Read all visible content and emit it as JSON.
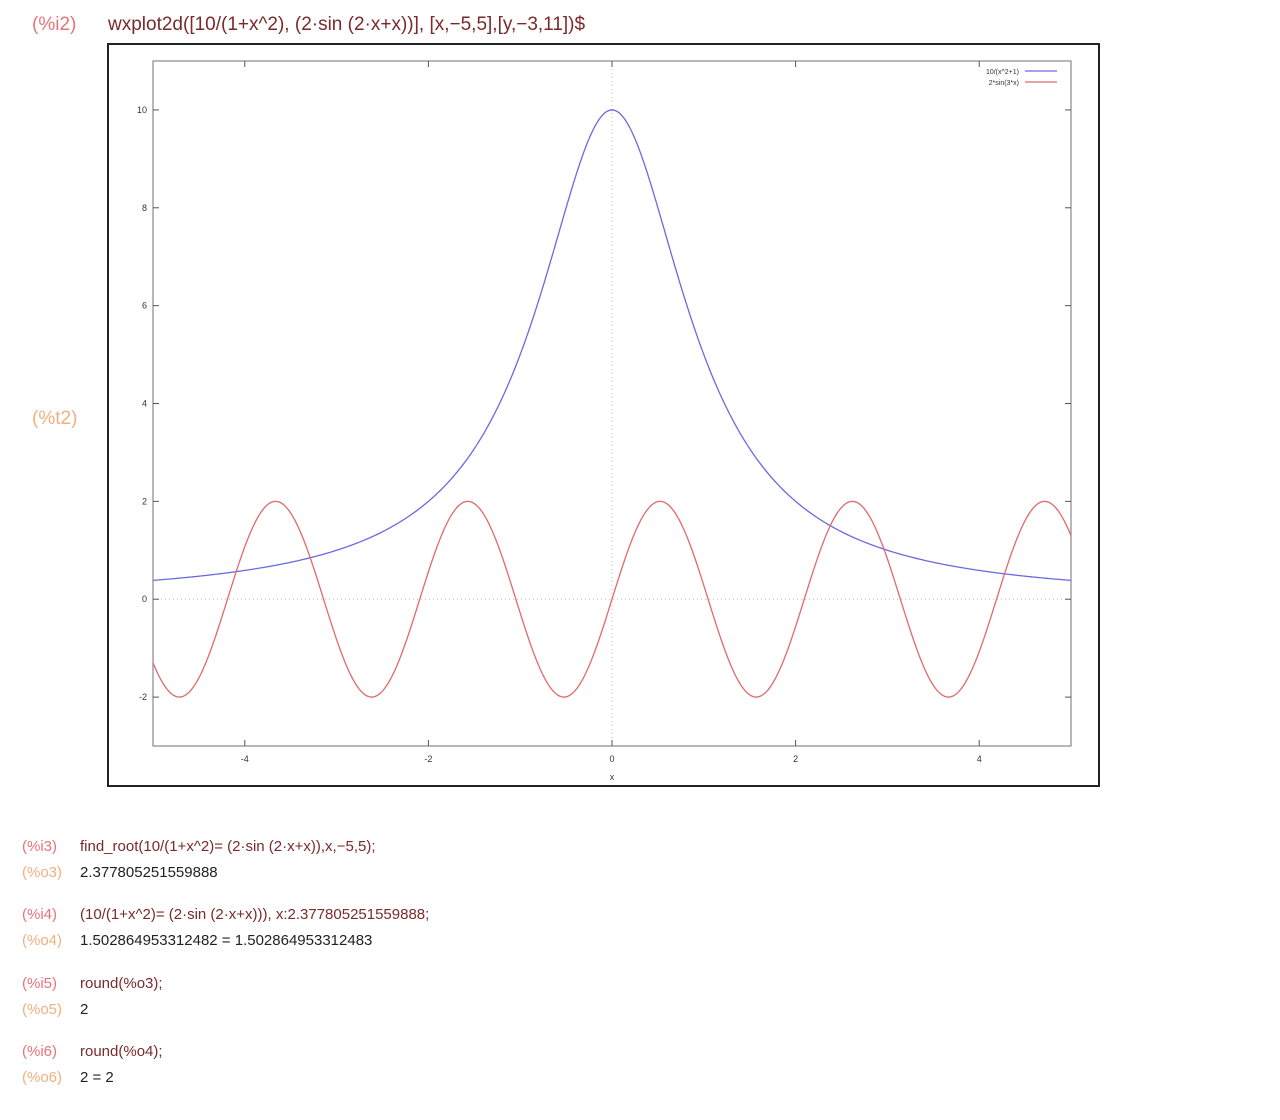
{
  "top": {
    "in_label": "(%i2)",
    "command": "wxplot2d([10/(1+x^2), (2·sin (2·x+x))], [x,−5,5],[y,−3,11])$",
    "plot_label": "(%t2)"
  },
  "cells": [
    {
      "in_label": "(%i3)",
      "in_text": "find_root(10/(1+x^2)= (2·sin (2·x+x)),x,−5,5);",
      "out_label": "(%o3)",
      "out_text": "2.377805251559888"
    },
    {
      "in_label": "(%i4)",
      "in_text": "(10/(1+x^2)= (2·sin (2·x+x))), x:2.377805251559888;",
      "out_label": "(%o4)",
      "out_text": "1.502864953312482 = 1.502864953312483"
    },
    {
      "in_label": "(%i5)",
      "in_text": "round(%o3);",
      "out_label": "(%o5)",
      "out_text": "2"
    },
    {
      "in_label": "(%i6)",
      "in_text": "round(%o4);",
      "out_label": "(%o6)",
      "out_text": "2 = 2"
    }
  ],
  "chart_data": {
    "type": "line",
    "xlabel": "x",
    "ylabel": "",
    "xlim": [
      -5,
      5
    ],
    "ylim": [
      -3,
      11
    ],
    "x_ticks": [
      -4,
      -2,
      0,
      2,
      4
    ],
    "y_ticks": [
      -2,
      0,
      2,
      4,
      6,
      8,
      10
    ],
    "x_tick_labels": [
      "-4",
      "-2",
      "0",
      "2",
      "4"
    ],
    "y_tick_labels": [
      "-2",
      "0",
      "2",
      "4",
      "6",
      "8",
      "10"
    ],
    "legend_position": "top-right",
    "zero_axes": true,
    "grid": false,
    "series": [
      {
        "name": "10/(x^2+1)",
        "expr": "10/(1+x^2)",
        "color": "#6a6ae0",
        "x": [
          -5,
          -4,
          -3,
          -2,
          -1,
          -0.5,
          0,
          0.5,
          1,
          2,
          3,
          4,
          5
        ],
        "y": [
          0.385,
          0.588,
          1.0,
          2.0,
          5.0,
          8.0,
          10.0,
          8.0,
          5.0,
          2.0,
          1.0,
          0.588,
          0.385
        ]
      },
      {
        "name": "2*sin(3*x)",
        "expr": "2*sin(3*x)",
        "color": "#e06a6a",
        "x": [
          -5,
          -4.71,
          -4.19,
          -3.67,
          -3.14,
          -2.62,
          -2.09,
          -1.57,
          -1.05,
          -0.52,
          0,
          0.52,
          1.05,
          1.57,
          2.09,
          2.62,
          3.14,
          3.67,
          4.19,
          4.71,
          5
        ],
        "y": [
          -1.3,
          -2.0,
          0.0,
          2.0,
          0.0,
          -2.0,
          0.0,
          2.0,
          0.0,
          -2.0,
          0.0,
          2.0,
          0.0,
          -2.0,
          0.0,
          2.0,
          0.0,
          -2.0,
          0.0,
          2.0,
          1.3
        ]
      }
    ]
  }
}
